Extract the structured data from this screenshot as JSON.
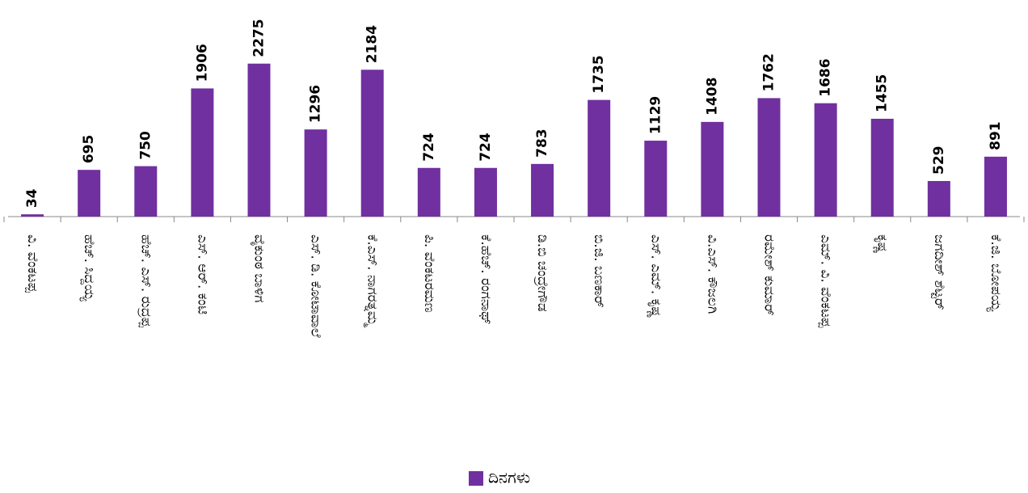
{
  "chart_data": {
    "type": "bar",
    "categories": [
      "ವಿ. ವೆಂಕಟಪ್ಪ",
      "ಹೆಚ್. ಸಿದ್ದಯ್ಯ",
      "ಹೆಚ್. ಎಸ್. ರುದ್ರಪ್ಪ",
      "ಎಸ್. ಆರ್. ಕಂಟಿ",
      "ವೈಕುಂಠ ಬಾಳಿಗ",
      "ಎಸ್. ಡಿ. ಕೋಟಾವಾಲೆ",
      "ಕೆ.ಎಸ್. ನಾಗರತ್ನಮ್ಮ",
      "ಪಿ. ವೆಂಕಟರಮಣ",
      "ಕೆ.ಹೆಚ್. ರಂಗನಾಥ್",
      "ಡಿ.ಬಿ ಚಂದ್ರೇಗೌಡ",
      "ಬಿ.ಜಿ. ಬಣಕಾರ್",
      "ಎಸ್. ಎಮ್. ಕೃಷ್ಣ",
      "ವಿ.ಎಸ್. ಕೌಜಲಗಿ",
      "ರಮೇಶ್ ಕುಮಾರ್",
      "ಎಮ್. ವಿ. ವೆಂಕಟಪ್ಪ",
      "ಕೃಷ್ಣ",
      "ಜಗದೀಶ್ ಶೆಟ್ಟರ್",
      "ಕೆ.ಜಿ. ಬೋಪಯ್ಯ"
    ],
    "series": [
      {
        "name": "ದಿನಗಳು",
        "color": "#7030a0",
        "values": [
          34,
          695,
          750,
          1906,
          2275,
          1296,
          2184,
          724,
          724,
          783,
          1735,
          1129,
          1408,
          1762,
          1686,
          1455,
          529,
          891
        ]
      }
    ],
    "ylim": [
      0,
      2500
    ],
    "legend": "bottom"
  }
}
